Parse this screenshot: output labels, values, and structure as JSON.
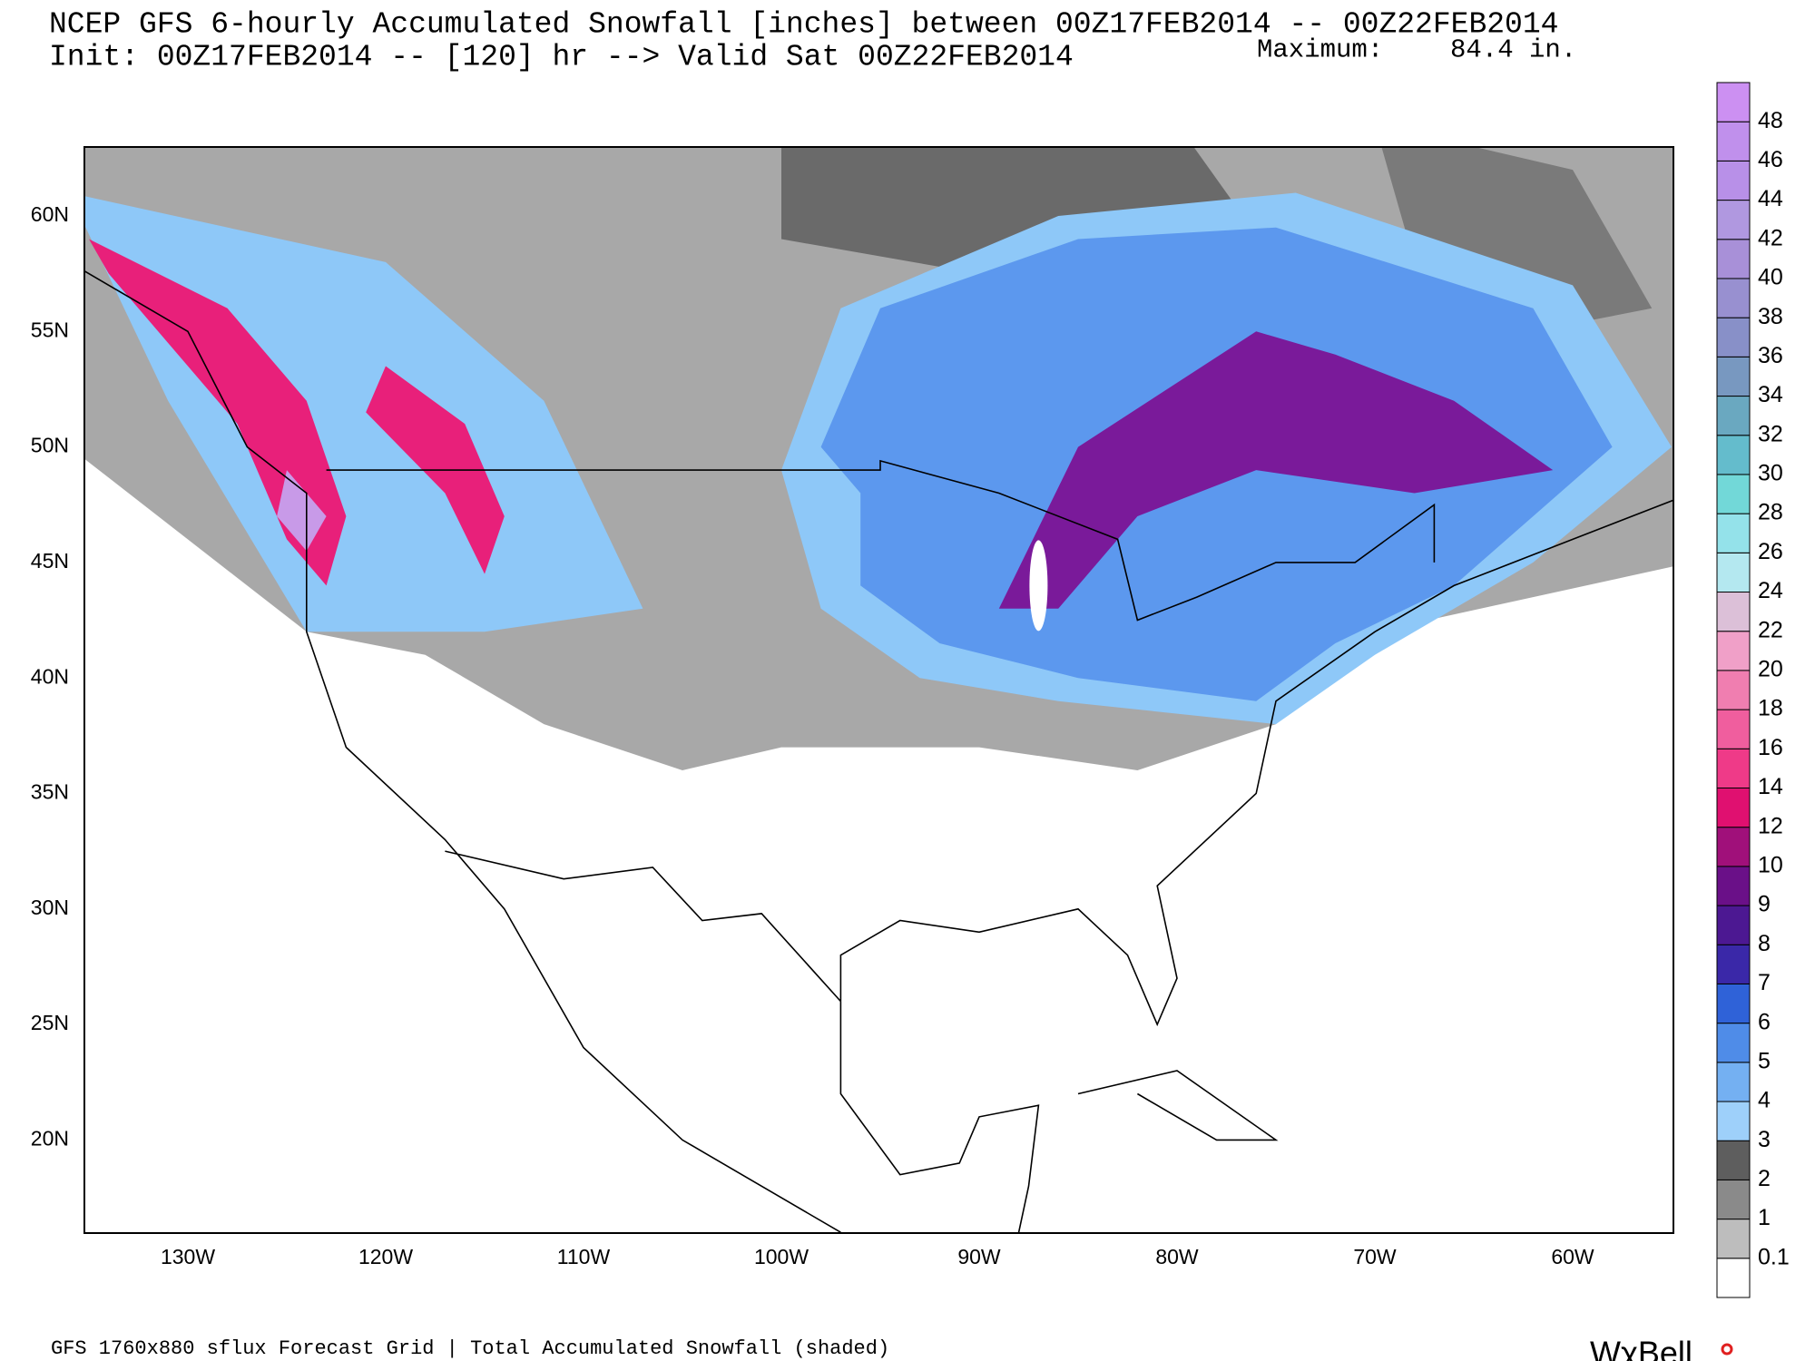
{
  "header": {
    "title": "NCEP GFS 6-hourly Accumulated Snowfall [inches] between 00Z17FEB2014 -- 00Z22FEB2014",
    "init": "Init: 00Z17FEB2014 -- [120] hr --> Valid Sat 00Z22FEB2014",
    "maximum_label": "Maximum:",
    "maximum_value": "84.4 in."
  },
  "map": {
    "lat_labels": [
      "60N",
      "55N",
      "50N",
      "45N",
      "40N",
      "35N",
      "30N",
      "25N",
      "20N"
    ],
    "lon_labels": [
      "130W",
      "120W",
      "110W",
      "100W",
      "90W",
      "80W",
      "70W",
      "60W"
    ]
  },
  "colorbar": {
    "below_color": "#ffffff",
    "levels": [
      {
        "label": "0.1",
        "color": "#bdbdbd"
      },
      {
        "label": "1",
        "color": "#8a8a8a"
      },
      {
        "label": "2",
        "color": "#5e5e5e"
      },
      {
        "label": "3",
        "color": "#9ed0fa"
      },
      {
        "label": "4",
        "color": "#74b0f2"
      },
      {
        "label": "5",
        "color": "#4f8ce8"
      },
      {
        "label": "6",
        "color": "#2f62d8"
      },
      {
        "label": "7",
        "color": "#3a28a8"
      },
      {
        "label": "8",
        "color": "#4c1892"
      },
      {
        "label": "9",
        "color": "#6a1088"
      },
      {
        "label": "10",
        "color": "#a0107a"
      },
      {
        "label": "12",
        "color": "#e01070"
      },
      {
        "label": "14",
        "color": "#ef3a88"
      },
      {
        "label": "16",
        "color": "#f05e9e"
      },
      {
        "label": "18",
        "color": "#f07eb0"
      },
      {
        "label": "20",
        "color": "#f0a0c8"
      },
      {
        "label": "22",
        "color": "#dcc0d8"
      },
      {
        "label": "24",
        "color": "#b4e8f0"
      },
      {
        "label": "26",
        "color": "#94e2ea"
      },
      {
        "label": "28",
        "color": "#72d8d8"
      },
      {
        "label": "30",
        "color": "#64bccc"
      },
      {
        "label": "32",
        "color": "#6aa8c0"
      },
      {
        "label": "34",
        "color": "#7898c0"
      },
      {
        "label": "36",
        "color": "#8890c8"
      },
      {
        "label": "38",
        "color": "#9890d0"
      },
      {
        "label": "40",
        "color": "#a890d8"
      },
      {
        "label": "42",
        "color": "#b098e0"
      },
      {
        "label": "44",
        "color": "#b890e8"
      },
      {
        "label": "46",
        "color": "#c090ec"
      },
      {
        "label": "48",
        "color": "#cc90f2"
      }
    ]
  },
  "footer": {
    "description": "GFS 1760x880 sflux Forecast Grid | Total Accumulated Snowfall (shaded)",
    "logo": "WχBell"
  }
}
